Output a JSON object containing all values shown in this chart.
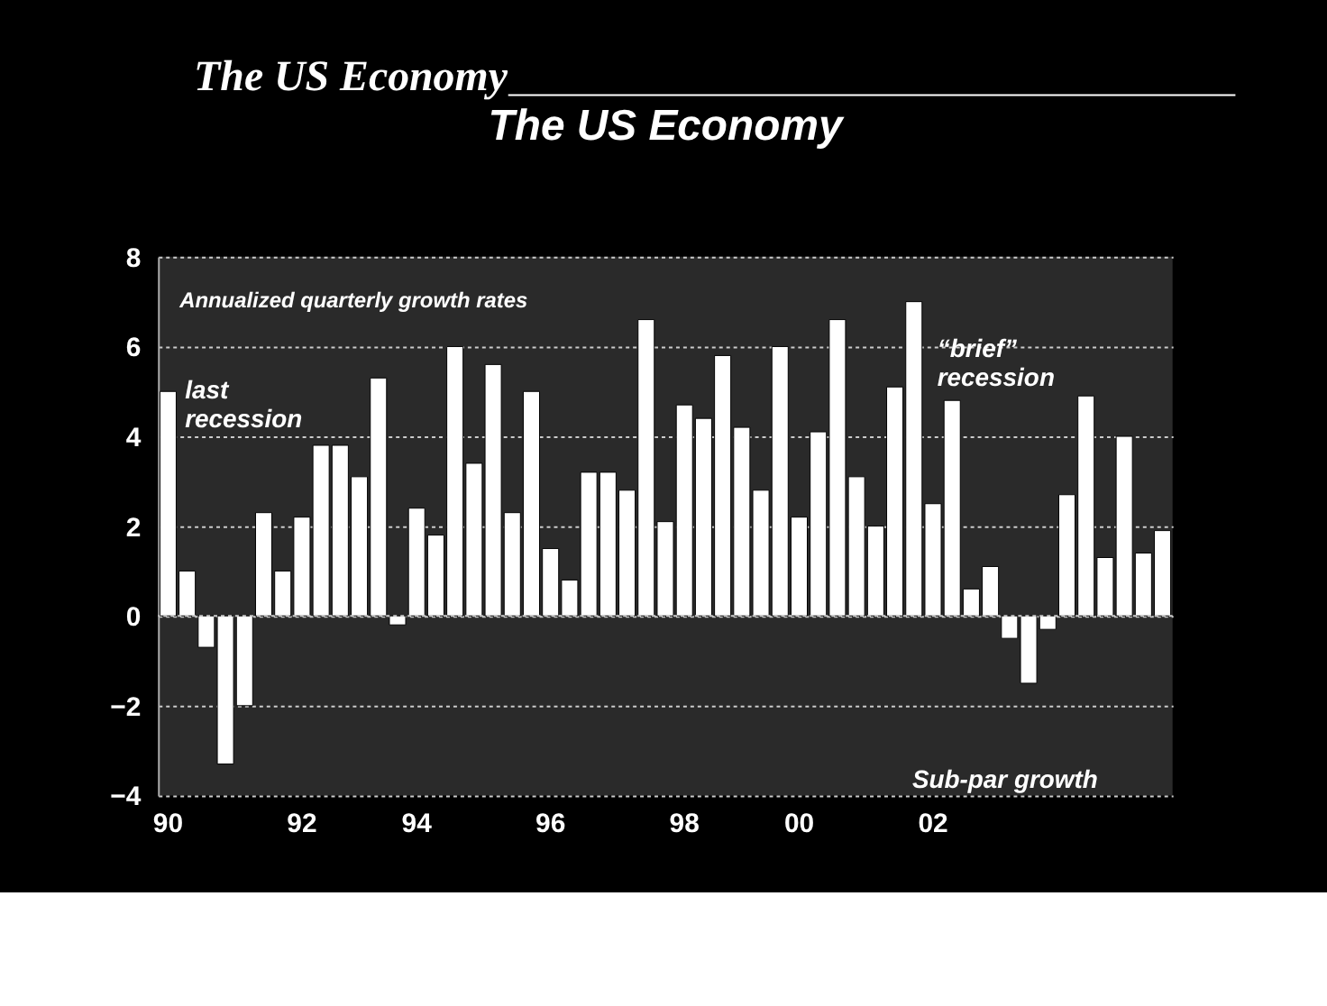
{
  "chart_data": {
    "type": "bar",
    "title": "The US Economy",
    "categories": [
      "90",
      null,
      null,
      null,
      null,
      null,
      null,
      "92",
      null,
      null,
      null,
      null,
      null,
      "94",
      null,
      null,
      null,
      null,
      null,
      null,
      "96",
      null,
      null,
      null,
      null,
      null,
      null,
      "98",
      null,
      null,
      null,
      null,
      null,
      "00",
      null,
      null,
      null,
      null,
      null,
      null,
      "02",
      null,
      null,
      null,
      null,
      null,
      null,
      null,
      null,
      null,
      null,
      null,
      null
    ],
    "values": [
      5.0,
      1.0,
      -0.7,
      -3.3,
      -2.0,
      2.3,
      1.0,
      2.2,
      3.8,
      3.8,
      3.1,
      5.3,
      -0.2,
      2.4,
      1.8,
      6.0,
      3.4,
      5.6,
      2.3,
      5.0,
      1.5,
      0.8,
      3.2,
      3.2,
      2.8,
      6.6,
      2.1,
      4.7,
      4.4,
      5.8,
      4.2,
      2.8,
      6.0,
      2.2,
      4.1,
      6.6,
      3.1,
      2.0,
      5.1,
      7.0,
      2.5,
      4.8,
      0.6,
      1.1,
      -0.5,
      -1.5,
      -0.3,
      2.7,
      4.9,
      1.3,
      4.0,
      1.4,
      1.9
    ],
    "color": "#ffffff",
    "ylim": [
      -4,
      8
    ],
    "yticks": [
      -4,
      -2,
      0,
      2,
      4,
      6,
      8
    ],
    "grid": "y",
    "annotations": [
      "The US Economy",
      "Annualized quarterly growth rates",
      "last recession",
      "“brief” recession",
      "Sub-par growth"
    ]
  }
}
